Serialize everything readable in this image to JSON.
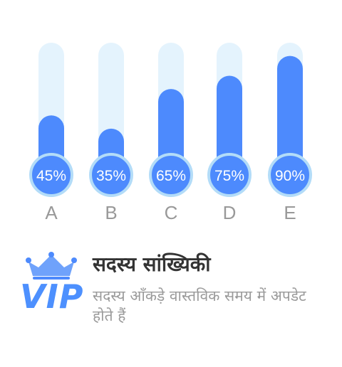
{
  "chart_data": {
    "type": "bar",
    "categories": [
      "A",
      "B",
      "C",
      "D",
      "E"
    ],
    "values": [
      45,
      35,
      65,
      75,
      90
    ],
    "value_labels": [
      "45%",
      "35%",
      "65%",
      "75%",
      "90%"
    ],
    "ylim": [
      0,
      100
    ],
    "grid": false,
    "colors": {
      "bar": "#4d8afd",
      "track": "#e4f3fd",
      "bubble_ring": "#b3dcf8",
      "label": "#999999",
      "value_text": "#ffffff"
    }
  },
  "vip": {
    "badge_text": "VIP",
    "title": "सदस्य सांख्यिकी",
    "description": "सदस्य आँकड़े वास्तविक समय में अपडेट होते हैं",
    "icon": "crown-icon",
    "accent": "#4d90fe"
  }
}
